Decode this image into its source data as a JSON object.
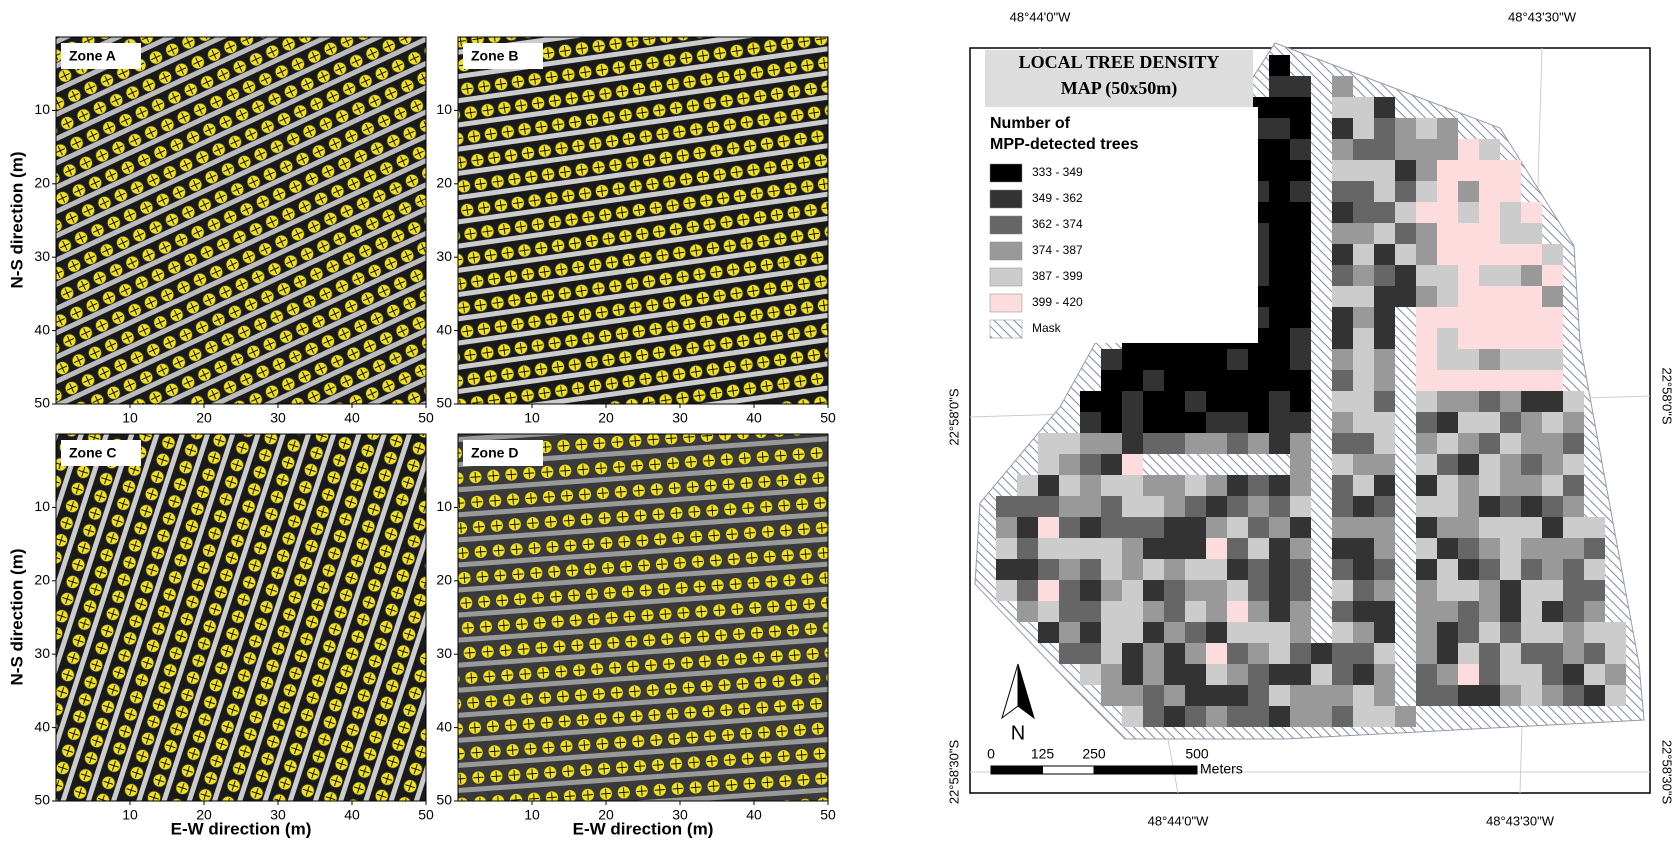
{
  "panels": [
    {
      "label": "Zone A",
      "xticks": [
        10,
        20,
        30,
        40,
        50
      ],
      "yticks": [
        10,
        20,
        30,
        40,
        50
      ]
    },
    {
      "label": "Zone B",
      "xticks": [
        10,
        20,
        30,
        40,
        50
      ],
      "yticks": [
        10,
        20,
        30,
        40,
        50
      ]
    },
    {
      "label": "Zone C",
      "xticks": [
        10,
        20,
        30,
        40,
        50
      ],
      "yticks": [
        10,
        20,
        30,
        40,
        50
      ]
    },
    {
      "label": "Zone D",
      "xticks": [
        10,
        20,
        30,
        40,
        50
      ],
      "yticks": [
        10,
        20,
        30,
        40,
        50
      ]
    }
  ],
  "y_axis_label": "N-S direction (m)",
  "x_axis_label": "E-W direction (m)",
  "map": {
    "title": [
      "LOCAL TREE DENSITY",
      "MAP (50x50m)"
    ],
    "legend_title": [
      "Number of",
      "MPP-detected trees"
    ],
    "legend": [
      {
        "label": "333 - 349",
        "color": "#000000"
      },
      {
        "label": "349 - 362",
        "color": "#333333"
      },
      {
        "label": "362 - 374",
        "color": "#666666"
      },
      {
        "label": "374 - 387",
        "color": "#999999"
      },
      {
        "label": "387 - 399",
        "color": "#cccccc"
      },
      {
        "label": "399 - 420",
        "color": "#fcdcdc"
      }
    ],
    "mask_label": "Mask",
    "top_longitudes": [
      "48°44'0\"W",
      "48°43'30\"W"
    ],
    "bottom_longitudes": [
      "48°44'0\"W",
      "48°43'30\"W"
    ],
    "left_latitudes": [
      "22°58'0\"S",
      "22°58'30\"S"
    ],
    "right_latitudes": [
      "22°58'0\"S",
      "22°58'30\"S"
    ],
    "scale_ticks": [
      0,
      125,
      250,
      500
    ],
    "scale_unit": "Meters",
    "north": "N"
  }
}
